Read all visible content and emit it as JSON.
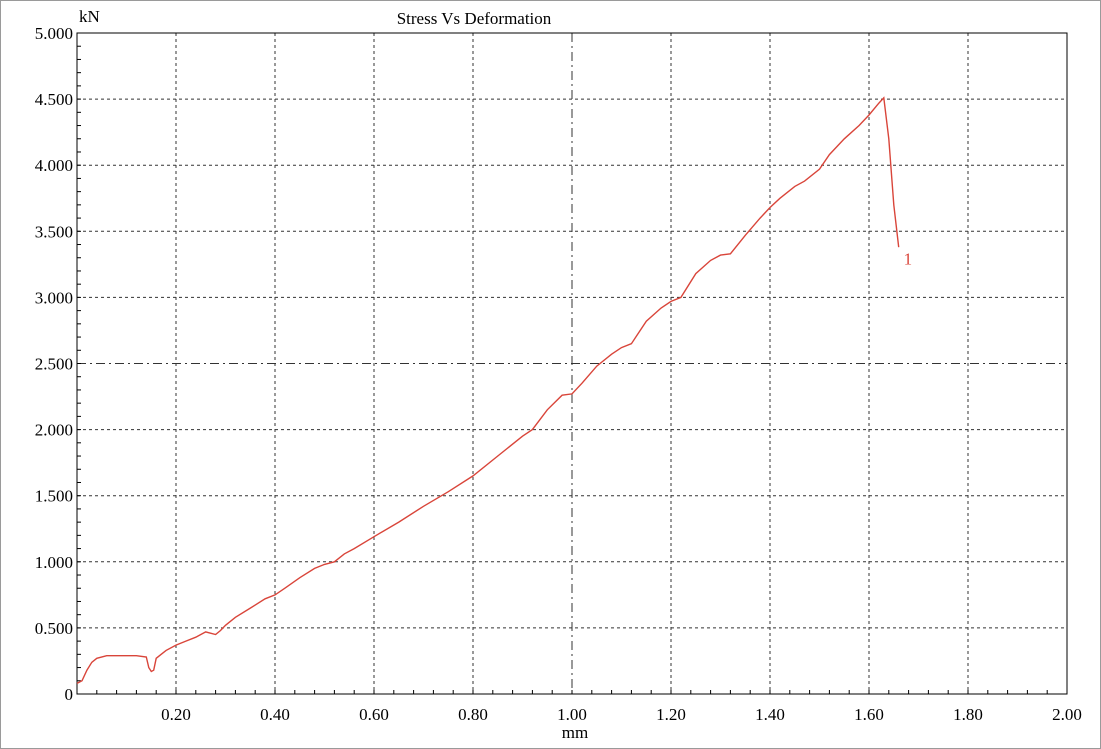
{
  "chart_data": {
    "type": "line",
    "title": "Stress Vs Deformation",
    "xlabel": "mm",
    "ylabel": "kN",
    "xlim": [
      0,
      2.0
    ],
    "ylim": [
      0,
      5.0
    ],
    "x_ticks": [
      0.2,
      0.4,
      0.6,
      0.8,
      1.0,
      1.2,
      1.4,
      1.6,
      1.8,
      2.0
    ],
    "x_tick_labels": [
      "0.20",
      "0.40",
      "0.60",
      "0.80",
      "1.00",
      "1.20",
      "1.40",
      "1.60",
      "1.80",
      "2.00"
    ],
    "y_ticks": [
      0,
      0.5,
      1.0,
      1.5,
      2.0,
      2.5,
      3.0,
      3.5,
      4.0,
      4.5,
      5.0
    ],
    "y_tick_labels": [
      "0",
      "0.500",
      "1.000",
      "1.500",
      "2.000",
      "2.500",
      "3.000",
      "3.500",
      "4.000",
      "4.500",
      "5.000"
    ],
    "grid": true,
    "legend": "none",
    "colors": {
      "series": "#d9453a",
      "grid": "#333333",
      "axis": "#000000"
    },
    "series": [
      {
        "name": "1",
        "x": [
          0.0,
          0.01,
          0.02,
          0.03,
          0.04,
          0.06,
          0.08,
          0.1,
          0.12,
          0.14,
          0.145,
          0.15,
          0.155,
          0.16,
          0.17,
          0.18,
          0.2,
          0.22,
          0.24,
          0.26,
          0.28,
          0.29,
          0.3,
          0.32,
          0.35,
          0.38,
          0.4,
          0.42,
          0.45,
          0.48,
          0.5,
          0.52,
          0.54,
          0.56,
          0.6,
          0.65,
          0.7,
          0.75,
          0.8,
          0.85,
          0.9,
          0.92,
          0.95,
          0.98,
          1.0,
          1.02,
          1.05,
          1.08,
          1.1,
          1.12,
          1.15,
          1.18,
          1.2,
          1.22,
          1.25,
          1.28,
          1.3,
          1.32,
          1.35,
          1.38,
          1.4,
          1.42,
          1.45,
          1.47,
          1.5,
          1.52,
          1.55,
          1.58,
          1.6,
          1.62,
          1.63,
          1.64,
          1.65,
          1.66
        ],
        "y": [
          0.08,
          0.1,
          0.18,
          0.24,
          0.27,
          0.29,
          0.29,
          0.29,
          0.29,
          0.28,
          0.2,
          0.17,
          0.18,
          0.27,
          0.3,
          0.33,
          0.37,
          0.4,
          0.43,
          0.47,
          0.45,
          0.48,
          0.52,
          0.58,
          0.65,
          0.72,
          0.75,
          0.8,
          0.88,
          0.95,
          0.98,
          1.0,
          1.06,
          1.1,
          1.19,
          1.3,
          1.42,
          1.53,
          1.65,
          1.8,
          1.95,
          2.0,
          2.15,
          2.26,
          2.27,
          2.35,
          2.48,
          2.57,
          2.62,
          2.65,
          2.82,
          2.92,
          2.97,
          3.0,
          3.18,
          3.28,
          3.32,
          3.33,
          3.47,
          3.6,
          3.68,
          3.75,
          3.84,
          3.88,
          3.97,
          4.08,
          4.2,
          4.3,
          4.38,
          4.47,
          4.51,
          4.2,
          3.7,
          3.38
        ]
      }
    ],
    "annotations": [
      {
        "text": "1",
        "x": 1.67,
        "y": 3.25
      }
    ]
  }
}
